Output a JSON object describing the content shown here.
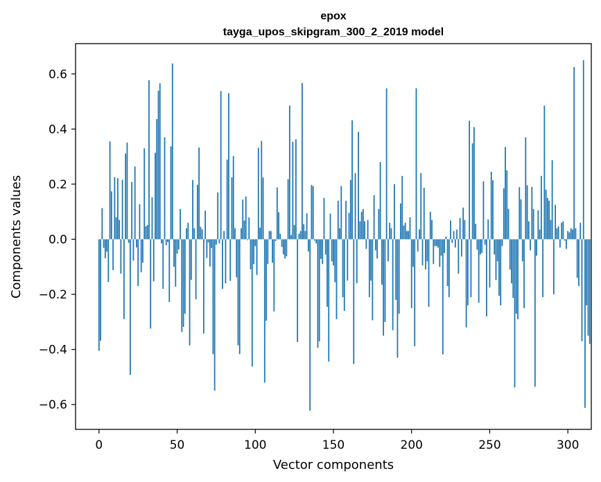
{
  "chart_data": {
    "type": "bar",
    "title": "epox",
    "subtitle": "tayga_upos_skipgram_300_2_2019 model",
    "xlabel": "Vector components",
    "ylabel": "Components values",
    "xlim": [
      -15,
      315
    ],
    "ylim": [
      -0.69,
      0.71
    ],
    "xticks": [
      0,
      50,
      100,
      150,
      200,
      250,
      300
    ],
    "yticks": [
      -0.6,
      -0.4,
      -0.2,
      0.0,
      0.2,
      0.4,
      0.6
    ],
    "xtick_labels": [
      "0",
      "50",
      "100",
      "150",
      "200",
      "250",
      "300"
    ],
    "ytick_labels": [
      "−0.6",
      "−0.4",
      "−0.2",
      "0.0",
      "0.2",
      "0.4",
      "0.6"
    ],
    "bar_color": "#1f77b4",
    "values": [
      -0.405,
      -0.368,
      0.113,
      -0.031,
      -0.069,
      -0.045,
      -0.155,
      0.355,
      0.174,
      -0.112,
      0.225,
      0.08,
      0.222,
      0.07,
      -0.125,
      0.216,
      -0.29,
      0.311,
      0.351,
      -0.013,
      -0.492,
      0.208,
      -0.077,
      0.264,
      -0.03,
      -0.17,
      0.127,
      -0.12,
      -0.085,
      0.33,
      0.047,
      0.052,
      0.577,
      -0.324,
      0.152,
      -0.153,
      0.314,
      0.436,
      0.539,
      0.566,
      -0.015,
      -0.18,
      0.37,
      -0.022,
      -0.01,
      -0.228,
      0.337,
      0.638,
      -0.1,
      -0.172,
      -0.052,
      -0.037,
      0.11,
      -0.337,
      -0.318,
      -0.27,
      0.04,
      0.06,
      -0.385,
      -0.147,
      0.215,
      0.04,
      -0.218,
      0.198,
      0.333,
      0.045,
      0.036,
      -0.342,
      0.104,
      -0.068,
      -0.012,
      -0.099,
      -0.032,
      -0.417,
      -0.549,
      -0.02,
      0.17,
      -0.015,
      0.538,
      -0.18,
      0.03,
      -0.16,
      0.289,
      0.53,
      -0.151,
      0.225,
      0.302,
      0.04,
      -0.138,
      -0.385,
      -0.417,
      0.04,
      0.144,
      0.068,
      0.155,
      -0.003,
      0.079,
      -0.109,
      -0.462,
      -0.09,
      -0.025,
      -0.13,
      0.332,
      0.042,
      0.357,
      0.224,
      -0.52,
      -0.296,
      -0.09,
      0.03,
      0.03,
      -0.085,
      -0.262,
      -0.006,
      0.188,
      0.098,
      0.02,
      -0.028,
      -0.055,
      -0.07,
      -0.062,
      0.218,
      0.485,
      0.015,
      0.354,
      0.052,
      0.363,
      -0.373,
      0.02,
      0.03,
      0.567,
      0.055,
      0.03,
      0.094,
      -0.044,
      -0.622,
      0.197,
      0.193,
      -0.005,
      -0.015,
      -0.394,
      -0.37,
      -0.071,
      -0.09,
      0.15,
      -0.056,
      -0.245,
      -0.444,
      0.093,
      -0.08,
      -0.095,
      -0.156,
      -0.29,
      0.14,
      0.04,
      0.193,
      -0.21,
      -0.26,
      0.14,
      -0.15,
      0.096,
      0.215,
      0.432,
      -0.453,
      0.24,
      -0.16,
      0.39,
      0.065,
      0.1,
      0.11,
      0.065,
      -0.035,
      0.07,
      -0.21,
      -0.15,
      -0.294,
      0.16,
      -0.04,
      -0.07,
      0.11,
      0.28,
      -0.165,
      -0.35,
      -0.3,
      0.548,
      -0.08,
      0.06,
      0.04,
      -0.33,
      0.2,
      -0.22,
      -0.43,
      -0.27,
      0.13,
      0.23,
      0.05,
      0.06,
      0.03,
      0.03,
      0.08,
      -0.25,
      -0.1,
      -0.388,
      0.548,
      -0.045,
      0.036,
      0.24,
      -0.095,
      0.187,
      -0.11,
      -0.08,
      -0.245,
      0.1,
      0.07,
      -0.09,
      -0.025,
      -0.025,
      -0.03,
      -0.1,
      -0.06,
      -0.418,
      -0.05,
      0.01,
      -0.17,
      -0.21,
      0.068,
      -0.013,
      0.03,
      -0.03,
      0.035,
      -0.125,
      0.077,
      -0.063,
      0.115,
      0.07,
      -0.32,
      -0.24,
      0.43,
      -0.21,
      0.348,
      0.407,
      0.056,
      -0.038,
      -0.23,
      -0.055,
      -0.05,
      0.21,
      -0.02,
      -0.28,
      0.072,
      -0.175,
      0.245,
      0.214,
      -0.055,
      -0.148,
      -0.08,
      -0.205,
      -0.24,
      -0.025,
      0.185,
      0.335,
      0.25,
      0.11,
      -0.11,
      -0.16,
      -0.213,
      -0.538,
      -0.27,
      -0.29,
      0.189,
      0.145,
      -0.08,
      -0.25,
      0.37,
      0.196,
      0.065,
      -0.04,
      0.19,
      0.11,
      -0.535,
      -0.06,
      0.105,
      0.035,
      0.23,
      -0.21,
      0.485,
      0.18,
      0.15,
      0.14,
      0.07,
      0.287,
      -0.2,
      0.125,
      0.04,
      0.047,
      -0.03,
      0.06,
      0.065,
      -0.005,
      -0.035,
      0.03,
      0.025,
      0.04,
      0.035,
      0.625,
      0.04,
      -0.14,
      -0.17,
      0.06,
      -0.37,
      0.65,
      -0.612,
      -0.24,
      -0.35,
      -0.38
    ]
  }
}
